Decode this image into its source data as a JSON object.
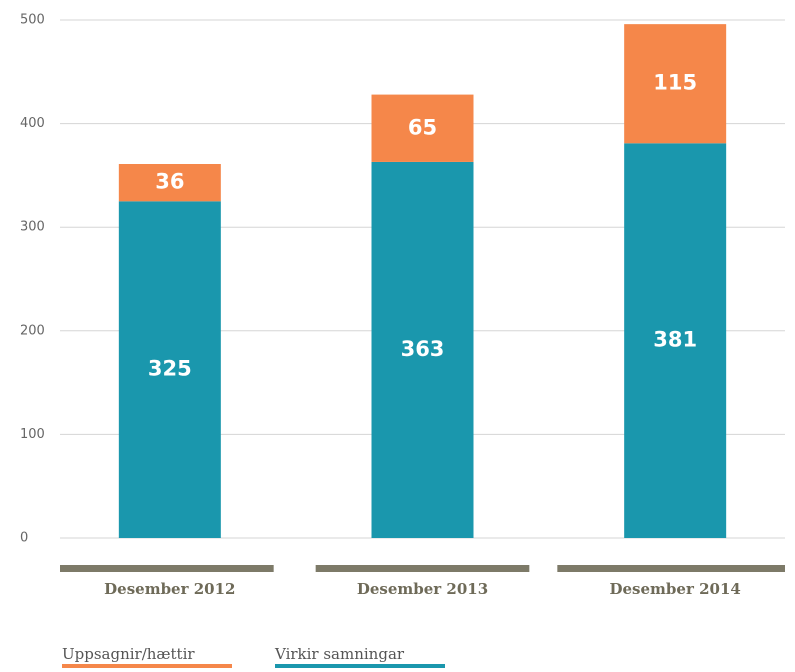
{
  "chart_data": {
    "type": "stacked_bar",
    "categories": [
      "Desember 2012",
      "Desember 2013",
      "Desember 2014"
    ],
    "series": [
      {
        "name": "Virkir samningar",
        "color": "#1a97ad",
        "values": [
          325,
          363,
          381
        ]
      },
      {
        "name": "Uppsagnir/hættir",
        "color": "#f5874a",
        "values": [
          36,
          65,
          115
        ]
      }
    ],
    "ylim": [
      0,
      500
    ],
    "yticks": [
      0,
      100,
      200,
      300,
      400,
      500
    ],
    "grid": true
  }
}
